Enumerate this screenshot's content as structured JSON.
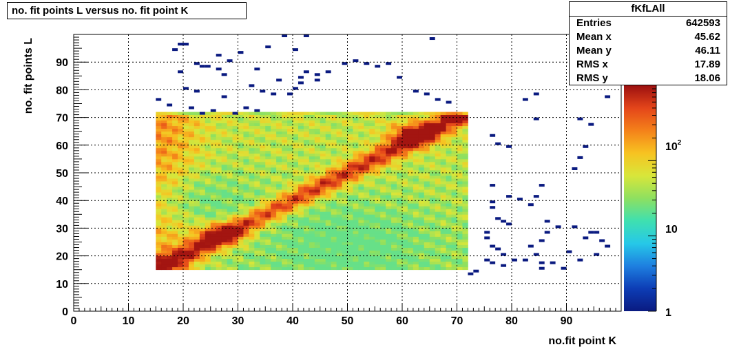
{
  "title": "no. fit points L versus no. fit point K",
  "stats": {
    "name": "fKfLAll",
    "rows": [
      {
        "label": "Entries",
        "value": "642593"
      },
      {
        "label": "Mean x",
        "value": "45.62"
      },
      {
        "label": "Mean y",
        "value": "46.11"
      },
      {
        "label": "RMS x",
        "value": "17.89"
      },
      {
        "label": "RMS y",
        "value": "18.06"
      }
    ]
  },
  "chart_data": {
    "type": "heatmap",
    "title": "no. fit points L versus no. fit point K",
    "xlabel": "no.fit point K",
    "ylabel": "no. fit points  L",
    "xlim": [
      0,
      100
    ],
    "ylim": [
      0,
      100
    ],
    "xticks": [
      0,
      10,
      20,
      30,
      40,
      50,
      60,
      70,
      80,
      90
    ],
    "yticks": [
      0,
      10,
      20,
      30,
      40,
      50,
      60,
      70,
      80,
      90
    ],
    "bin_width": 1,
    "grid": true,
    "z_scale": "log",
    "z_range": [
      1,
      1000
    ],
    "z_ticks": [
      "1",
      "10",
      "10^2"
    ],
    "colormap": [
      "#0a1a80",
      "#0d3db5",
      "#1e7fe0",
      "#26c8e8",
      "#3fe0b0",
      "#8ee060",
      "#d8e63a",
      "#f7c321",
      "#f4811a",
      "#e4451a",
      "#9c1010"
    ],
    "dense_region": {
      "x": [
        15,
        72
      ],
      "y": [
        15,
        72
      ]
    },
    "features": [
      {
        "kind": "diagonal-band",
        "from": [
          15,
          16
        ],
        "to": [
          72,
          72
        ],
        "peaks": [
          [
            27,
            28
          ],
          [
            62,
            64
          ]
        ]
      },
      {
        "kind": "hot-corner",
        "at": [
          70,
          71
        ]
      },
      {
        "kind": "sparse-outliers",
        "entries": 1
      }
    ],
    "sparse_points": [
      [
        19,
        96
      ],
      [
        20,
        96
      ],
      [
        18,
        94
      ],
      [
        26,
        92
      ],
      [
        28,
        90
      ],
      [
        22,
        89
      ],
      [
        23,
        88
      ],
      [
        24,
        88
      ],
      [
        26,
        87
      ],
      [
        19,
        86
      ],
      [
        27,
        85
      ],
      [
        20,
        80
      ],
      [
        22,
        79
      ],
      [
        27,
        77
      ],
      [
        32,
        81
      ],
      [
        34,
        79
      ],
      [
        36,
        78
      ],
      [
        39,
        78
      ],
      [
        40,
        80
      ],
      [
        41,
        82
      ],
      [
        41,
        84
      ],
      [
        42,
        86
      ],
      [
        44,
        83
      ],
      [
        44,
        85
      ],
      [
        46,
        86
      ],
      [
        49,
        89
      ],
      [
        51,
        90
      ],
      [
        53,
        89
      ],
      [
        55,
        88
      ],
      [
        57,
        89
      ],
      [
        59,
        84
      ],
      [
        62,
        79
      ],
      [
        64,
        78
      ],
      [
        66,
        76
      ],
      [
        68,
        75
      ],
      [
        38,
        99
      ],
      [
        42,
        99
      ],
      [
        65,
        98
      ],
      [
        35,
        95
      ],
      [
        40,
        94
      ],
      [
        30,
        93
      ],
      [
        33,
        87
      ],
      [
        37,
        83
      ],
      [
        23,
        71
      ],
      [
        25,
        72
      ],
      [
        29,
        71
      ],
      [
        31,
        73
      ],
      [
        33,
        72
      ],
      [
        15,
        76
      ],
      [
        17,
        74
      ],
      [
        21,
        73
      ],
      [
        76,
        63
      ],
      [
        77,
        60
      ],
      [
        79,
        59
      ],
      [
        76,
        45
      ],
      [
        79,
        41
      ],
      [
        76,
        39
      ],
      [
        76,
        37
      ],
      [
        77,
        33
      ],
      [
        78,
        32
      ],
      [
        79,
        31
      ],
      [
        75,
        28
      ],
      [
        75,
        26
      ],
      [
        76,
        23
      ],
      [
        77,
        22
      ],
      [
        78,
        20
      ],
      [
        82,
        76
      ],
      [
        84,
        69
      ],
      [
        92,
        69
      ],
      [
        94,
        67
      ],
      [
        93,
        59
      ],
      [
        92,
        55
      ],
      [
        91,
        51
      ],
      [
        97,
        77
      ],
      [
        81,
        40
      ],
      [
        83,
        38
      ],
      [
        84,
        41
      ],
      [
        85,
        45
      ],
      [
        86,
        32
      ],
      [
        86,
        28
      ],
      [
        88,
        30
      ],
      [
        85,
        25
      ],
      [
        83,
        23
      ],
      [
        84,
        20
      ],
      [
        82,
        18
      ],
      [
        85,
        17
      ],
      [
        85,
        15
      ],
      [
        87,
        17
      ],
      [
        89,
        15
      ],
      [
        90,
        21
      ],
      [
        92,
        18
      ],
      [
        93,
        26
      ],
      [
        94,
        28
      ],
      [
        95,
        28
      ],
      [
        96,
        25
      ],
      [
        97,
        23
      ],
      [
        95,
        20
      ],
      [
        91,
        30
      ],
      [
        84,
        78
      ],
      [
        80,
        18
      ],
      [
        78,
        16
      ],
      [
        76,
        17
      ],
      [
        75,
        18
      ],
      [
        73,
        14
      ],
      [
        72,
        13
      ]
    ]
  }
}
